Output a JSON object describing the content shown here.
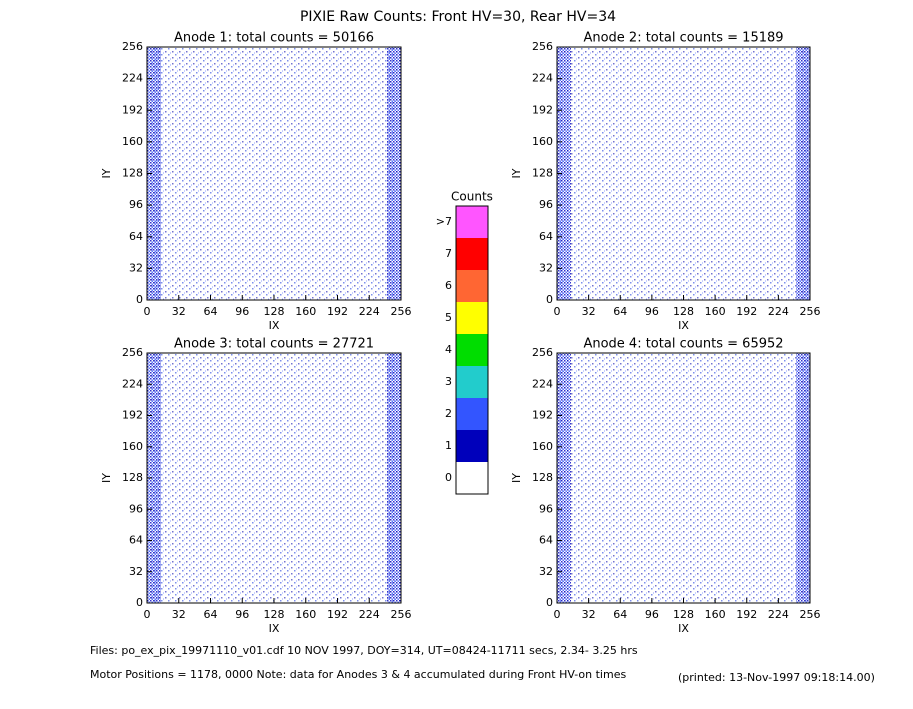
{
  "title": "PIXIE Raw Counts:  Front HV=30, Rear HV=34",
  "chart_data": [
    {
      "type": "heatmap",
      "title": "Anode 1: total counts = 50166",
      "x_label": "IX",
      "y_label": "IY",
      "xlim": [
        0,
        256
      ],
      "xticks": [
        0,
        32,
        64,
        96,
        128,
        160,
        192,
        224,
        256
      ],
      "ylim": [
        0,
        256
      ],
      "yticks": [
        0,
        32,
        64,
        96,
        128,
        160,
        192,
        224,
        256
      ]
    },
    {
      "type": "heatmap",
      "title": "Anode 2: total counts = 15189",
      "x_label": "IX",
      "y_label": "IY",
      "xlim": [
        0,
        256
      ],
      "xticks": [
        0,
        32,
        64,
        96,
        128,
        160,
        192,
        224,
        256
      ],
      "ylim": [
        0,
        256
      ],
      "yticks": [
        0,
        32,
        64,
        96,
        128,
        160,
        192,
        224,
        256
      ]
    },
    {
      "type": "heatmap",
      "title": "Anode 3: total counts = 27721",
      "x_label": "IX",
      "y_label": "IY",
      "xlim": [
        0,
        256
      ],
      "xticks": [
        0,
        32,
        64,
        96,
        128,
        160,
        192,
        224,
        256
      ],
      "ylim": [
        0,
        256
      ],
      "yticks": [
        0,
        32,
        64,
        96,
        128,
        160,
        192,
        224,
        256
      ]
    },
    {
      "type": "heatmap",
      "title": "Anode 4: total counts = 65952",
      "x_label": "IX",
      "y_label": "IY",
      "xlim": [
        0,
        256
      ],
      "xticks": [
        0,
        32,
        64,
        96,
        128,
        160,
        192,
        224,
        256
      ],
      "ylim": [
        0,
        256
      ],
      "yticks": [
        0,
        32,
        64,
        96,
        128,
        160,
        192,
        224,
        256
      ]
    }
  ],
  "colorbar": {
    "title": "Counts",
    "levels": [
      {
        "label": ">7",
        "color": "#ff55ff"
      },
      {
        "label": "7",
        "color": "#ff0000"
      },
      {
        "label": "6",
        "color": "#ff6633"
      },
      {
        "label": "5",
        "color": "#ffff00"
      },
      {
        "label": "4",
        "color": "#00dd00"
      },
      {
        "label": "3",
        "color": "#22cccc"
      },
      {
        "label": "2",
        "color": "#3355ff"
      },
      {
        "label": "1",
        "color": "#0000bb"
      },
      {
        "label": "0",
        "color": "#ffffff"
      }
    ]
  },
  "footer": {
    "files": "Files: po_ex_pix_19971110_v01.cdf    10 NOV 1997, DOY=314, UT=08424-11711 secs,  2.34- 3.25 hrs",
    "motor": "Motor Positions = 1178, 0000   Note: data for Anodes 3 & 4 accumulated during Front HV-on times",
    "printed": "(printed: 13-Nov-1997 09:18:14.00)"
  }
}
